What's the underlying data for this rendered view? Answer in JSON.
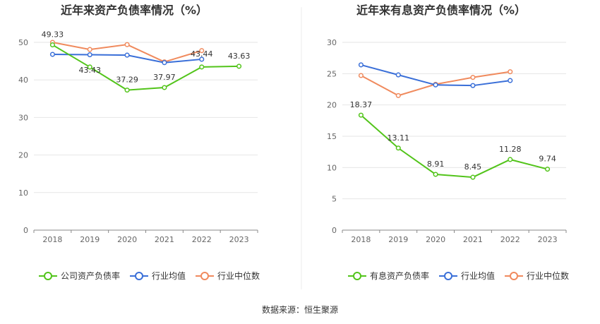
{
  "source_text": "数据来源：恒生聚源",
  "chart_data": [
    {
      "type": "line",
      "title": "近年来资产负债率情况（%）",
      "categories": [
        "2018",
        "2019",
        "2020",
        "2021",
        "2022",
        "2023"
      ],
      "ylim": [
        0,
        50
      ],
      "yticks": [
        "0",
        "10",
        "20",
        "30",
        "40",
        "50"
      ],
      "grid": true,
      "legend_position": "bottom",
      "series": [
        {
          "name": "公司资产负债率",
          "color": "#52c41a",
          "values": [
            49.33,
            43.43,
            37.29,
            37.97,
            43.44,
            43.63
          ],
          "labels": [
            "49.33",
            "43.43",
            "37.29",
            "37.97",
            "43.44",
            "43.63"
          ]
        },
        {
          "name": "行业均值",
          "color": "#3a6fd8",
          "values": [
            46.8,
            46.7,
            46.6,
            44.6,
            45.5,
            null
          ]
        },
        {
          "name": "行业中位数",
          "color": "#f08a5d",
          "values": [
            50.0,
            48.1,
            49.4,
            44.8,
            47.8,
            null
          ]
        }
      ]
    },
    {
      "type": "line",
      "title": "近年来有息资产负债率情况（%）",
      "categories": [
        "2018",
        "2019",
        "2020",
        "2021",
        "2022",
        "2023"
      ],
      "ylim": [
        0,
        30
      ],
      "yticks": [
        "0",
        "5",
        "10",
        "15",
        "20",
        "25",
        "30"
      ],
      "grid": true,
      "legend_position": "bottom",
      "series": [
        {
          "name": "有息资产负债率",
          "color": "#52c41a",
          "values": [
            18.37,
            13.11,
            8.91,
            8.45,
            11.28,
            9.74
          ],
          "labels": [
            "18.37",
            "13.11",
            "8.91",
            "8.45",
            "11.28",
            "9.74"
          ]
        },
        {
          "name": "行业均值",
          "color": "#3a6fd8",
          "values": [
            26.4,
            24.8,
            23.2,
            23.1,
            23.9,
            null
          ]
        },
        {
          "name": "行业中位数",
          "color": "#f08a5d",
          "values": [
            24.7,
            21.5,
            23.3,
            24.4,
            25.3,
            null
          ]
        }
      ]
    }
  ]
}
